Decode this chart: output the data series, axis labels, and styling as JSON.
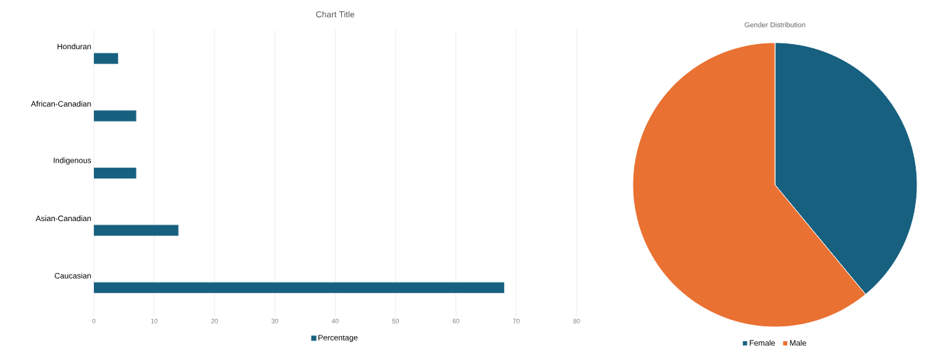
{
  "chart_data": [
    {
      "type": "bar",
      "orientation": "horizontal",
      "title": "Chart Title",
      "categories": [
        "Honduran",
        "African-Canadian",
        "Indigenous",
        "Asian-Canadian",
        "Caucasian"
      ],
      "series": [
        {
          "name": "Percentage",
          "color": "#17607f",
          "values": [
            4,
            7,
            7,
            14,
            68
          ]
        }
      ],
      "xlim": [
        0,
        80
      ],
      "xticks": [
        0,
        10,
        20,
        30,
        40,
        50,
        60,
        70,
        80
      ],
      "grid": "x",
      "legend": "bottom"
    },
    {
      "type": "pie",
      "title": "Gender Distribution",
      "categories": [
        "Female",
        "Male"
      ],
      "values": [
        39,
        61
      ],
      "colors": [
        "#17607f",
        "#e97132"
      ],
      "legend": "bottom"
    }
  ]
}
